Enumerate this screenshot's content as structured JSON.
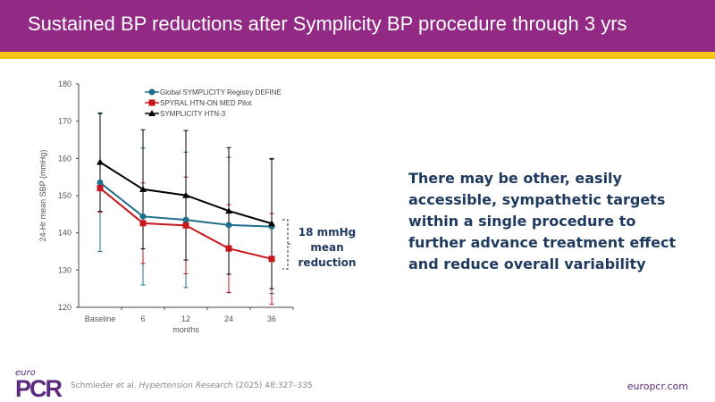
{
  "header": {
    "title": "Sustained BP reductions after Symplicity BP procedure through 3 yrs"
  },
  "message": "There may be other, easily accessible, sympathetic targets within a single procedure to further advance treatment effect and reduce overall variability",
  "annotation": {
    "line1": "18 mmHg",
    "line2": "mean",
    "line3": "reduction"
  },
  "footer": {
    "logo_top": "euro",
    "logo_main": "PCR",
    "citation_authors": "Schmieder et al. ",
    "citation_journal": "Hypertension Research",
    "citation_rest": " (2025) 48:327–335",
    "url": "europcr.com"
  },
  "colors": {
    "header": "#922A85",
    "stripe": "#F5C518",
    "text": "#1F3A5F"
  },
  "chart_data": {
    "type": "line",
    "xlabel": "months",
    "ylabel": "24-Hr mean SBP (mmHg)",
    "categories": [
      "Baseline",
      "6",
      "12",
      "24",
      "36"
    ],
    "ylim": [
      120,
      180
    ],
    "yticks": [
      120,
      130,
      140,
      150,
      160,
      170,
      180
    ],
    "legend": "top",
    "series": [
      {
        "name": "Global SYMPLICITY Registry DEFINE",
        "color": "#1F6E8C",
        "marker": "circle",
        "values": [
          153.5,
          144.4,
          143.5,
          142.1,
          141.7
        ],
        "error": [
          18.5,
          18.4,
          18.2,
          18.2,
          18.0
        ]
      },
      {
        "name": "SPYRAL HTN-ON MED Pilot",
        "color": "#C8161D",
        "marker": "square",
        "values": [
          152.0,
          142.6,
          142.0,
          135.8,
          133.0
        ],
        "error": [
          6.5,
          10.8,
          13.0,
          11.8,
          12.2
        ]
      },
      {
        "name": "SYMPLICITY HTN-3",
        "color": "#000000",
        "marker": "triangle",
        "values": [
          159.0,
          151.7,
          150.1,
          145.9,
          142.5
        ],
        "error": [
          13.2,
          16.0,
          17.4,
          17.0,
          17.5
        ]
      }
    ]
  }
}
